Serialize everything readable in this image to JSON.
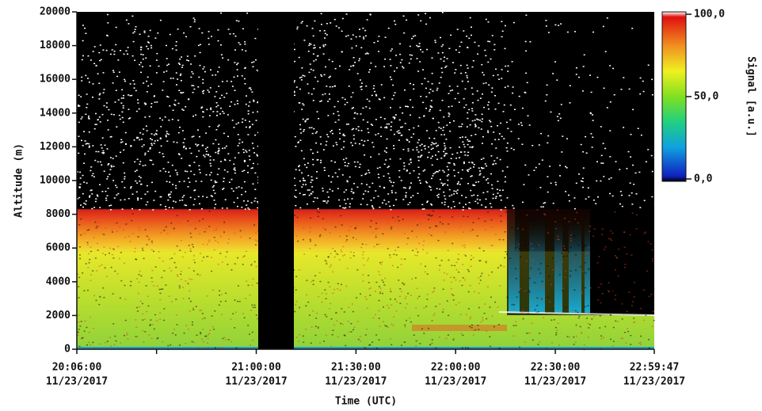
{
  "chart_data": {
    "type": "heatmap",
    "ylabel": "Altitude (m)",
    "xlabel": "Time (UTC)",
    "ylim": [
      0,
      20000
    ],
    "yticks": [
      0,
      2000,
      4000,
      6000,
      8000,
      10000,
      12000,
      14000,
      16000,
      18000,
      20000
    ],
    "xlim": [
      "2017-11-23T20:06:00",
      "2017-11-23T22:59:47"
    ],
    "xticks": [
      {
        "value": "2017-11-23T20:06:00",
        "label": [
          "20:06:00",
          "11/23/2017"
        ]
      },
      {
        "value": "2017-11-23T20:30:00"
      },
      {
        "value": "2017-11-23T21:00:00",
        "label": [
          "21:00:00",
          "11/23/2017"
        ]
      },
      {
        "value": "2017-11-23T21:30:00",
        "label": [
          "21:30:00",
          "11/23/2017"
        ]
      },
      {
        "value": "2017-11-23T22:00:00",
        "label": [
          "22:00:00",
          "11/23/2017"
        ]
      },
      {
        "value": "2017-11-23T22:30:00",
        "label": [
          "22:30:00",
          "11/23/2017"
        ]
      },
      {
        "value": "2017-11-23T22:59:47",
        "label": [
          "22:59:47",
          "11/23/2017"
        ]
      }
    ],
    "colorbar": {
      "label": "Signal [a.u.]",
      "lim": [
        0,
        100
      ],
      "ticks": [
        {
          "value": 100,
          "label": "100,0"
        },
        {
          "value": 50,
          "label": "50,0"
        },
        {
          "value": 0,
          "label": "0,0"
        }
      ]
    }
  }
}
